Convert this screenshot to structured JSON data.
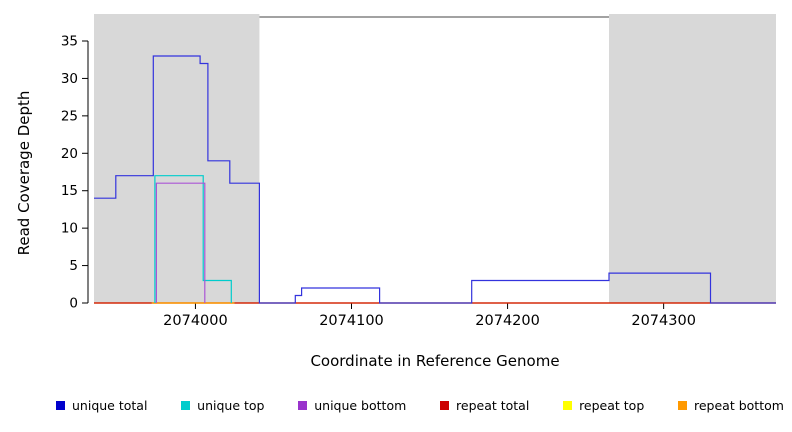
{
  "chart_data": {
    "type": "line",
    "step": true,
    "title": "",
    "xlabel": "Coordinate in Reference Genome",
    "ylabel": "Read Coverage Depth",
    "xlim": [
      2073935,
      2074372
    ],
    "ylim": [
      0,
      35
    ],
    "xticks": [
      2074000,
      2074100,
      2074200,
      2074300
    ],
    "yticks": [
      0,
      5,
      10,
      15,
      20,
      25,
      30,
      35
    ],
    "grid": false,
    "legend_position": "bottom",
    "background_color": "#ffffff",
    "shaded_region_color": "#d8d8d8",
    "shaded_regions": [
      {
        "x0": 2073935,
        "x1": 2074041
      },
      {
        "x0": 2074265,
        "x1": 2074372
      }
    ],
    "series": [
      {
        "name": "repeat top",
        "color": "#ffff00",
        "points": [
          [
            2073935,
            0
          ],
          [
            2074372,
            0
          ]
        ]
      },
      {
        "name": "repeat total",
        "color": "#cc0000",
        "points": [
          [
            2073935,
            0
          ],
          [
            2074372,
            0
          ]
        ]
      },
      {
        "name": "repeat bottom",
        "color": "#ff9900",
        "points": [
          [
            2073972,
            0
          ],
          [
            2074025,
            0
          ]
        ]
      },
      {
        "name": "unique top",
        "color": "#00cccc",
        "points": [
          [
            2073974,
            0
          ],
          [
            2073974,
            17
          ],
          [
            2074005,
            3
          ],
          [
            2074023,
            0
          ]
        ]
      },
      {
        "name": "unique bottom",
        "color": "#aa55d5",
        "points": [
          [
            2073975,
            0
          ],
          [
            2073975,
            16
          ],
          [
            2074006,
            0
          ]
        ]
      },
      {
        "name": "unique total",
        "color": "#3333dd",
        "points": [
          [
            2073935,
            14
          ],
          [
            2073949,
            17
          ],
          [
            2073973,
            33
          ],
          [
            2074003,
            32
          ],
          [
            2074008,
            19
          ],
          [
            2074022,
            16
          ],
          [
            2074041,
            0
          ],
          [
            2074064,
            1
          ],
          [
            2074068,
            2
          ],
          [
            2074118,
            0
          ],
          [
            2074177,
            3
          ],
          [
            2074265,
            4
          ],
          [
            2074330,
            0
          ],
          [
            2074372,
            0
          ]
        ]
      }
    ],
    "legend": [
      {
        "label": "unique total",
        "color": "#0000cc"
      },
      {
        "label": "unique top",
        "color": "#00cccc"
      },
      {
        "label": "unique bottom",
        "color": "#9933cc"
      },
      {
        "label": "repeat total",
        "color": "#cc0000"
      },
      {
        "label": "repeat top",
        "color": "#ffff00"
      },
      {
        "label": "repeat bottom",
        "color": "#ff9900"
      }
    ]
  }
}
